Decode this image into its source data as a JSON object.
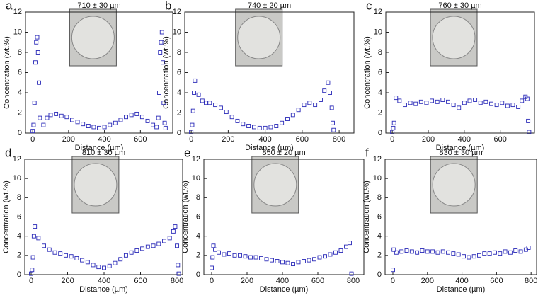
{
  "chart_data": [
    {
      "type": "scatter",
      "panel_label": "a",
      "title": "710 ± 30 µm",
      "xlabel": "Distance (µm)",
      "ylabel": "Concentration (wt.%)",
      "color": "#2a2ab8",
      "x": [
        0,
        5,
        10,
        15,
        20,
        25,
        30,
        35,
        40,
        60,
        80,
        100,
        130,
        160,
        190,
        220,
        250,
        280,
        310,
        340,
        370,
        400,
        430,
        460,
        490,
        520,
        550,
        580,
        610,
        640,
        670,
        690,
        700,
        705,
        710,
        715,
        720,
        725,
        730,
        735,
        740
      ],
      "values": [
        0.2,
        0.8,
        3,
        7,
        9,
        9.5,
        8,
        5,
        1.5,
        0.8,
        1.5,
        1.8,
        1.9,
        1.7,
        1.6,
        1.3,
        1.1,
        0.9,
        0.7,
        0.6,
        0.5,
        0.6,
        0.8,
        1.0,
        1.3,
        1.6,
        1.8,
        1.9,
        1.6,
        1.2,
        0.8,
        0.6,
        1.5,
        4,
        8,
        9,
        10,
        7,
        3,
        1,
        0.5
      ],
      "xlim": [
        -40,
        780
      ],
      "xticks": [
        0,
        200,
        400,
        600
      ],
      "ylim": [
        0,
        12
      ],
      "yticks": [
        0,
        2,
        4,
        6,
        8,
        10,
        12
      ]
    },
    {
      "type": "scatter",
      "panel_label": "b",
      "title": "740 ± 20 µm",
      "xlabel": "Distance (µm)",
      "ylabel": "Concentration (wt.%)",
      "color": "#2a2ab8",
      "x": [
        0,
        5,
        10,
        15,
        20,
        40,
        60,
        80,
        100,
        130,
        160,
        190,
        220,
        250,
        280,
        310,
        340,
        370,
        400,
        430,
        460,
        490,
        520,
        550,
        580,
        610,
        640,
        670,
        700,
        720,
        740,
        750,
        760,
        765,
        770
      ],
      "values": [
        0.1,
        0.8,
        2.2,
        4,
        5.2,
        3.8,
        3.2,
        3.0,
        3.0,
        2.8,
        2.5,
        2.1,
        1.6,
        1.2,
        0.9,
        0.7,
        0.6,
        0.5,
        0.5,
        0.6,
        0.7,
        1.0,
        1.4,
        1.8,
        2.3,
        2.8,
        3.0,
        2.8,
        3.3,
        4.2,
        5.0,
        4,
        2.5,
        1,
        0.3
      ],
      "xlim": [
        -35,
        880
      ],
      "xticks": [
        0,
        200,
        400,
        600,
        800
      ],
      "ylim": [
        0,
        12
      ],
      "yticks": [
        0,
        2,
        4,
        6,
        8,
        10,
        12
      ]
    },
    {
      "type": "scatter",
      "panel_label": "c",
      "title": "760 ± 30 µm",
      "xlabel": "Distance (µm)",
      "ylabel": "Concentration (wt.%)",
      "color": "#2a2ab8",
      "x": [
        0,
        5,
        10,
        20,
        40,
        70,
        100,
        130,
        160,
        190,
        220,
        250,
        280,
        310,
        340,
        370,
        400,
        430,
        460,
        490,
        520,
        550,
        580,
        610,
        640,
        670,
        700,
        720,
        740,
        750,
        755,
        760
      ],
      "values": [
        0.1,
        0.5,
        1,
        3.5,
        3.2,
        2.8,
        3.0,
        2.9,
        3.1,
        3.0,
        3.2,
        3.1,
        3.3,
        3.1,
        2.8,
        2.5,
        3.0,
        3.2,
        3.3,
        3.0,
        3.1,
        2.9,
        2.8,
        3.0,
        2.7,
        2.8,
        2.6,
        3.2,
        3.6,
        3.4,
        1.2,
        0.1
      ],
      "xlim": [
        -36,
        790
      ],
      "xticks": [
        0,
        200,
        400,
        600
      ],
      "ylim": [
        0,
        12
      ],
      "yticks": [
        0,
        2,
        4,
        6,
        8,
        10,
        12
      ]
    },
    {
      "type": "scatter",
      "panel_label": "d",
      "title": "810 ± 30 µm",
      "xlabel": "Distance (µm)",
      "ylabel": "Concentration (wt.%)",
      "color": "#2a2ab8",
      "x": [
        0,
        5,
        10,
        15,
        20,
        40,
        70,
        100,
        130,
        160,
        190,
        220,
        250,
        280,
        310,
        340,
        370,
        400,
        430,
        460,
        490,
        520,
        550,
        580,
        610,
        640,
        670,
        700,
        730,
        760,
        780,
        790,
        800,
        805,
        810
      ],
      "values": [
        0.1,
        0.5,
        1.8,
        4,
        5,
        3.8,
        3.0,
        2.6,
        2.3,
        2.2,
        2.0,
        1.9,
        1.7,
        1.5,
        1.3,
        1.0,
        0.8,
        0.7,
        0.9,
        1.2,
        1.6,
        2.0,
        2.3,
        2.5,
        2.7,
        2.9,
        3.0,
        3.2,
        3.5,
        3.8,
        4.5,
        5,
        3,
        1,
        0.1
      ],
      "xlim": [
        -35,
        831
      ],
      "xticks": [
        0,
        200,
        400,
        600,
        800
      ],
      "ylim": [
        0,
        12
      ],
      "yticks": [
        0,
        2,
        4,
        6,
        8,
        10,
        12
      ]
    },
    {
      "type": "scatter",
      "panel_label": "e",
      "title": "850 ± 20 µm",
      "xlabel": "Distance (µm)",
      "ylabel": "Concentration (wt.%)",
      "color": "#2a2ab8",
      "x": [
        0,
        5,
        10,
        20,
        40,
        70,
        100,
        130,
        160,
        190,
        220,
        250,
        280,
        310,
        340,
        370,
        400,
        430,
        460,
        490,
        520,
        550,
        580,
        610,
        640,
        670,
        700,
        730,
        760,
        780,
        790
      ],
      "values": [
        0.7,
        1.8,
        3.0,
        2.6,
        2.3,
        2.1,
        2.2,
        2.0,
        2.0,
        1.9,
        1.8,
        1.8,
        1.7,
        1.6,
        1.5,
        1.4,
        1.3,
        1.2,
        1.1,
        1.3,
        1.4,
        1.5,
        1.6,
        1.8,
        1.9,
        2.1,
        2.3,
        2.5,
        2.9,
        3.3,
        0.1
      ],
      "xlim": [
        -44,
        860
      ],
      "xticks": [
        0,
        200,
        400,
        600,
        800
      ],
      "ylim": [
        0,
        12
      ],
      "yticks": [
        0,
        2,
        4,
        6,
        8,
        10,
        12
      ]
    },
    {
      "type": "scatter",
      "panel_label": "f",
      "title": "830 ± 30 µm",
      "xlabel": "Distance (µm)",
      "ylabel": "Concentration (wt.%)",
      "color": "#2a2ab8",
      "x": [
        0,
        5,
        20,
        50,
        80,
        110,
        140,
        170,
        200,
        230,
        260,
        290,
        320,
        350,
        380,
        410,
        440,
        470,
        500,
        530,
        560,
        590,
        620,
        650,
        680,
        710,
        740,
        770,
        785
      ],
      "values": [
        0.5,
        2.6,
        2.3,
        2.4,
        2.5,
        2.4,
        2.3,
        2.5,
        2.4,
        2.4,
        2.3,
        2.4,
        2.3,
        2.2,
        2.1,
        1.9,
        1.8,
        1.9,
        2.0,
        2.2,
        2.2,
        2.3,
        2.2,
        2.4,
        2.3,
        2.5,
        2.4,
        2.6,
        2.8
      ],
      "xlim": [
        -45,
        832
      ],
      "xticks": [
        0,
        200,
        400,
        600,
        800
      ],
      "ylim": [
        0,
        12
      ],
      "yticks": [
        0,
        2,
        4,
        6,
        8,
        10,
        12
      ]
    }
  ]
}
